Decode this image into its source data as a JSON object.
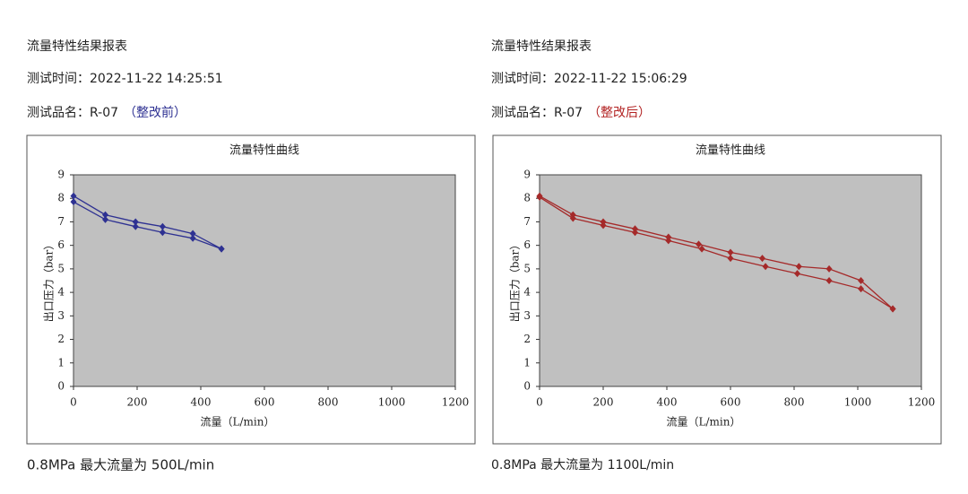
{
  "panels": [
    {
      "heading": "流量特性结果报表",
      "time": "测试时间：2022-11-22 14:25:51",
      "name": "测试品名：R-07",
      "note": "（整改前）",
      "note_color": "#2e3192",
      "footer": "0.8MPa 最大流量为 500L/min"
    },
    {
      "heading": "流量特性结果报表",
      "time": "测试时间：2022-11-22 15:06:29",
      "name": "测试品名：R-07",
      "note": "（整改后）",
      "note_color": "#b22222",
      "footer": "0.8MPa 最大流量为 1100L/min"
    }
  ],
  "chart_data": [
    {
      "type": "line",
      "title": "流量特性曲线",
      "x_label": "流量（L/min）",
      "y_label": "出口压力（bar）",
      "xlim": [
        0,
        1200
      ],
      "xticks": [
        0,
        200,
        400,
        600,
        800,
        1000,
        1200
      ],
      "ylim": [
        0,
        9
      ],
      "yticks": [
        0,
        1,
        2,
        3,
        4,
        5,
        6,
        7,
        8,
        9
      ],
      "plot_background": "#c0c0c0",
      "series": [
        {
          "color": "#2e3192",
          "x": [
            0,
            100,
            195,
            280,
            375,
            465
          ],
          "values": [
            8.1,
            7.3,
            7.0,
            6.8,
            6.5,
            5.85
          ]
        },
        {
          "color": "#2e3192",
          "x": [
            0,
            100,
            195,
            280,
            375,
            465
          ],
          "values": [
            7.85,
            7.1,
            6.8,
            6.55,
            6.3,
            5.85
          ]
        }
      ]
    },
    {
      "type": "line",
      "title": "流量特性曲线",
      "x_label": "流量（L/min）",
      "y_label": "出口压力（bar）",
      "xlim": [
        0,
        1200
      ],
      "xticks": [
        0,
        200,
        400,
        600,
        800,
        1000,
        1200
      ],
      "ylim": [
        0,
        9
      ],
      "yticks": [
        0,
        1,
        2,
        3,
        4,
        5,
        6,
        7,
        8,
        9
      ],
      "plot_background": "#c0c0c0",
      "series": [
        {
          "color": "#a52a2a",
          "x": [
            0,
            105,
            200,
            300,
            405,
            500,
            600,
            700,
            815,
            910,
            1010,
            1110
          ],
          "values": [
            8.1,
            7.3,
            7.0,
            6.7,
            6.35,
            6.05,
            5.7,
            5.45,
            5.1,
            5.0,
            4.5,
            3.3
          ]
        },
        {
          "color": "#a52a2a",
          "x": [
            0,
            105,
            200,
            300,
            405,
            510,
            600,
            710,
            810,
            910,
            1010,
            1110
          ],
          "values": [
            8.05,
            7.15,
            6.85,
            6.55,
            6.2,
            5.85,
            5.45,
            5.1,
            4.8,
            4.5,
            4.15,
            3.3
          ]
        }
      ]
    }
  ]
}
